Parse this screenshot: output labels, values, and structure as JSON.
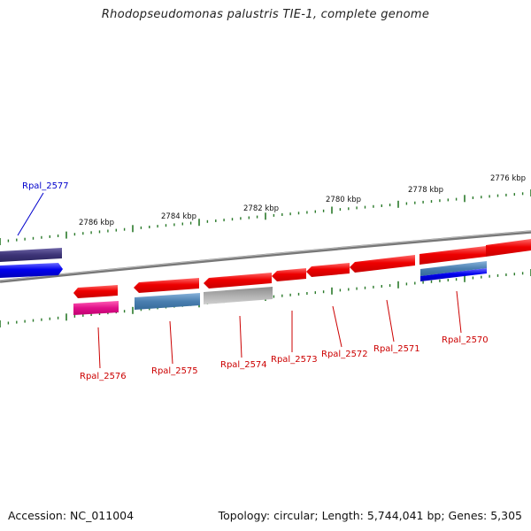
{
  "title": "Rhodopseudomonas palustris TIE-1, complete genome",
  "footer": {
    "accession": "Accession: NC_011004",
    "topology": "Topology: circular; Length: 5,744,041 bp; Genes: 5,305"
  },
  "scale_labels": [
    "2786 kbp",
    "2784 kbp",
    "2782 kbp",
    "2780 kbp",
    "2778 kbp",
    "2776 kbp"
  ],
  "gene_labels": [
    {
      "text": "Rpal_2577",
      "color": "#0000cc"
    },
    {
      "text": "Rpal_2576",
      "color": "#cc0000"
    },
    {
      "text": "Rpal_2575",
      "color": "#cc0000"
    },
    {
      "text": "Rpal_2574",
      "color": "#cc0000"
    },
    {
      "text": "Rpal_2573",
      "color": "#cc0000"
    },
    {
      "text": "Rpal_2572",
      "color": "#cc0000"
    },
    {
      "text": "Rpal_2571",
      "color": "#cc0000"
    },
    {
      "text": "Rpal_2570",
      "color": "#cc0000"
    }
  ],
  "colors": {
    "backbone": "#7a7a7a",
    "gene_red": "#ee0000",
    "gene_blue": "#0000ee",
    "gene_navy": "#3d3477",
    "gene_steelblue": "#4a7fb0",
    "gene_gray": "#a9a9a9",
    "gene_magenta": "#e0108a",
    "tick_green": "#2a7a2a",
    "label_red": "#cc0000",
    "label_blue": "#0000cc"
  }
}
